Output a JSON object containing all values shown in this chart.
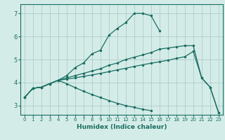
{
  "xlabel": "Humidex (Indice chaleur)",
  "ylabel": "",
  "bg_color": "#d4ece8",
  "grid_color": "#aeccc8",
  "line_color": "#1a6e62",
  "xlim": [
    -0.5,
    23.5
  ],
  "ylim": [
    2.6,
    7.4
  ],
  "xticks": [
    0,
    1,
    2,
    3,
    4,
    5,
    6,
    7,
    8,
    9,
    10,
    11,
    12,
    13,
    14,
    15,
    16,
    17,
    18,
    19,
    20,
    21,
    22,
    23
  ],
  "yticks": [
    3,
    4,
    5,
    6,
    7
  ],
  "lines": [
    {
      "x": [
        0,
        1,
        2,
        3,
        4,
        5,
        6,
        7,
        8,
        9,
        10,
        11,
        12,
        13,
        14,
        15,
        16
      ],
      "y": [
        3.35,
        3.75,
        3.8,
        3.95,
        4.1,
        4.3,
        4.65,
        4.85,
        5.25,
        5.4,
        6.05,
        6.35,
        6.6,
        7.0,
        7.0,
        6.9,
        6.25
      ]
    },
    {
      "x": [
        0,
        1,
        2,
        3,
        4,
        5,
        6,
        7,
        8,
        9,
        10,
        11,
        12,
        13,
        14,
        15,
        16,
        17,
        18,
        19,
        20,
        21,
        22,
        23
      ],
      "y": [
        3.35,
        3.75,
        3.8,
        3.95,
        4.1,
        4.2,
        4.3,
        4.4,
        4.5,
        4.6,
        4.75,
        4.85,
        5.0,
        5.1,
        5.2,
        5.3,
        5.45,
        5.5,
        5.55,
        5.6,
        5.6,
        4.2,
        3.8,
        2.7
      ]
    },
    {
      "x": [
        0,
        1,
        2,
        3,
        4,
        5,
        6,
        7,
        8,
        9,
        10,
        11,
        12,
        13,
        14,
        15,
        16,
        17,
        18,
        19,
        20,
        21,
        22,
        23
      ],
      "y": [
        3.35,
        3.75,
        3.8,
        3.95,
        4.1,
        4.15,
        4.2,
        4.27,
        4.33,
        4.4,
        4.47,
        4.55,
        4.62,
        4.7,
        4.77,
        4.84,
        4.9,
        4.97,
        5.05,
        5.12,
        5.35,
        4.2,
        3.8,
        2.7
      ]
    },
    {
      "x": [
        0,
        1,
        2,
        3,
        4,
        5,
        6,
        7,
        8,
        9,
        10,
        11,
        12,
        13,
        14,
        15,
        16,
        17,
        18,
        19,
        20,
        21,
        22,
        23
      ],
      "y": [
        3.35,
        3.75,
        3.8,
        3.95,
        4.1,
        3.95,
        3.78,
        3.62,
        3.48,
        3.35,
        3.22,
        3.1,
        3.0,
        2.92,
        2.84,
        2.78,
        null,
        null,
        null,
        null,
        null,
        null,
        null,
        null
      ]
    }
  ]
}
